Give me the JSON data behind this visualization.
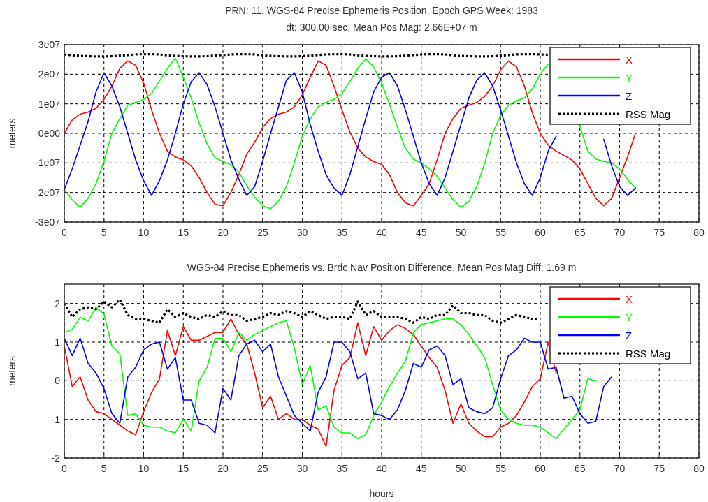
{
  "chart_data": [
    {
      "type": "line",
      "title": "PRN: 11, WGS-84 Precise Ephemeris Position, Epoch GPS Week: 1983",
      "subtitle": "dt: 300.00 sec, Mean Pos Mag: 2.66E+07 m",
      "ylabel": "meters",
      "grid": true,
      "legend": "top right",
      "xlim": [
        0,
        80
      ],
      "xticks": [
        0,
        5,
        10,
        15,
        20,
        25,
        30,
        35,
        40,
        45,
        50,
        55,
        60,
        65,
        70,
        75,
        80
      ],
      "ylim": [
        -30000000.0,
        30000000.0
      ],
      "yticks": [
        {
          "value": -30000000.0,
          "label": "-3e07"
        },
        {
          "value": -20000000.0,
          "label": "-2e07"
        },
        {
          "value": -10000000.0,
          "label": "-1e07"
        },
        {
          "value": 0,
          "label": "0e00"
        },
        {
          "value": 10000000.0,
          "label": "1e07"
        },
        {
          "value": 20000000.0,
          "label": "2e07"
        },
        {
          "value": 30000000.0,
          "label": "3e07"
        }
      ],
      "x": [
        0,
        1,
        2,
        3,
        4,
        5,
        6,
        7,
        8,
        9,
        10,
        11,
        12,
        13,
        14,
        15,
        16,
        17,
        18,
        19,
        20,
        21,
        22,
        23,
        24,
        25,
        26,
        27,
        28,
        29,
        30,
        31,
        32,
        33,
        34,
        35,
        36,
        37,
        38,
        39,
        40,
        41,
        42,
        43,
        44,
        45,
        46,
        47,
        48,
        49,
        50,
        51,
        52,
        53,
        54,
        55,
        56,
        57,
        58,
        59,
        60,
        61,
        62,
        63,
        64,
        65,
        66,
        67,
        68,
        69,
        70,
        71,
        72
      ],
      "series": [
        {
          "name": "X",
          "color": "#ff0000",
          "line_style": "solid",
          "values": [
            0,
            4500000.0,
            6500000.0,
            7200000.0,
            8500000.0,
            11500000.0,
            16000000.0,
            22000000.0,
            24500000.0,
            23000000.0,
            17000000.0,
            8000000.0,
            0,
            -6000000.0,
            -8000000.0,
            -9000000.0,
            -11000000.0,
            -15000000.0,
            -20000000.0,
            -24000000.0,
            -24500000.0,
            -20000000.0,
            -14000000.0,
            -7000000.0,
            -3000000.0,
            2000000.0,
            5000000.0,
            6500000.0,
            7200000.0,
            9000000.0,
            13000000.0,
            19000000.0,
            24500000.0,
            23000000.0,
            16000000.0,
            8000000.0,
            500000.0,
            -5000000.0,
            -8000000.0,
            -9500000.0,
            -10500000.0,
            -14000000.0,
            -20000000.0,
            -23500000.0,
            -24500000.0,
            -21000000.0,
            -17000000.0,
            -9000000.0,
            0,
            5000000.0,
            8500000.0,
            9500000.0,
            10500000.0,
            12500000.0,
            16000000.0,
            21500000.0,
            24500000.0,
            22500000.0,
            16000000.0,
            7000000.0,
            0,
            -4000000.0,
            -6000000.0,
            -7500000.0,
            -9000000.0,
            -12000000.0,
            -17000000.0,
            -22000000.0,
            -24500000.0,
            -22000000.0,
            -15000000.0,
            -8000000.0,
            0
          ]
        },
        {
          "name": "Y",
          "color": "#00ff00",
          "line_style": "solid",
          "values": [
            -19000000.0,
            -22500000.0,
            -25000000.0,
            -22000000.0,
            -17000000.0,
            -9500000.0,
            0,
            5000000.0,
            9500000.0,
            10500000.0,
            11400000.0,
            13500000.0,
            17700000.0,
            22000000.0,
            25500000.0,
            19000000.0,
            12000000.0,
            3500000.0,
            -3500000.0,
            -8300000.0,
            -9500000.0,
            -10600000.0,
            -13000000.0,
            -17700000.0,
            -21600000.0,
            -24500000.0,
            -25500000.0,
            -23000000.0,
            -18000000.0,
            -10000000.0,
            -1000000.0,
            5000000.0,
            9000000.0,
            10500000.0,
            11500000.0,
            13500000.0,
            17500000.0,
            22000000.0,
            25200000.0,
            22500000.0,
            17000000.0,
            9800000.0,
            2000000.0,
            -5000000.0,
            -8700000.0,
            -10000000.0,
            -12000000.0,
            -14500000.0,
            -18500000.0,
            -22500000.0,
            -25000000.0,
            -23000000.0,
            -18000000.0,
            -10000000.0,
            0,
            6000000.0,
            9500000.0,
            11000000.0,
            12000000.0,
            15000000.0,
            20000000.0,
            23500000.0,
            null,
            null,
            null,
            2500000.0,
            -6000000.0,
            -8700000.0,
            -9500000.0,
            -10000000.0,
            -12000000.0,
            -15500000.0,
            -18500000.0
          ]
        },
        {
          "name": "Z",
          "color": "#0000ff",
          "line_style": "solid",
          "values": [
            -19000000.0,
            -12000000.0,
            -4000000.0,
            4000000.0,
            14000000.0,
            20500000.0,
            16000000.0,
            9000000.0,
            0,
            -9000000.0,
            -16000000.0,
            -21000000.0,
            -16000000.0,
            -9000000.0,
            0,
            10000000.0,
            17500000.0,
            20500000.0,
            16500000.0,
            9000000.0,
            0,
            -9000000.0,
            -15500000.0,
            -21000000.0,
            -18000000.0,
            -9500000.0,
            0,
            9000000.0,
            18000000.0,
            20500000.0,
            14000000.0,
            3000000.0,
            -6000000.0,
            -14000000.0,
            -18500000.0,
            -21000000.0,
            -14000000.0,
            -4500000.0,
            5000000.0,
            14000000.0,
            19000000.0,
            20500000.0,
            16000000.0,
            8000000.0,
            -1000000.0,
            -10000000.0,
            -17000000.0,
            -21000000.0,
            -15000000.0,
            -6000000.0,
            3000000.0,
            12000000.0,
            18000000.0,
            20500000.0,
            16000000.0,
            8000000.0,
            -1000000.0,
            -10000000.0,
            -17000000.0,
            -21000000.0,
            -15000000.0,
            -6000000.0,
            -1000000.0,
            null,
            null,
            null,
            null,
            null,
            -2000000.0,
            -11000000.0,
            -18000000.0,
            -21000000.0,
            -18500000.0
          ]
        },
        {
          "name": "RSS Mag",
          "color": "#000000",
          "line_style": "dotted",
          "values": [
            26700000.0,
            26400000.0,
            26200000.0,
            26100000.0,
            26000000.0,
            26000000.0,
            26100000.0,
            26300000.0,
            26500000.0,
            26700000.0,
            26800000.0,
            26800000.0,
            26700000.0,
            26400000.0,
            26200000.0,
            26100000.0,
            26000000.0,
            26000000.0,
            26100000.0,
            26300000.0,
            26500000.0,
            26700000.0,
            26800000.0,
            26800000.0,
            26700000.0,
            26400000.0,
            26200000.0,
            26100000.0,
            26000000.0,
            26000000.0,
            26100000.0,
            26300000.0,
            26500000.0,
            26700000.0,
            26800000.0,
            26800000.0,
            26700000.0,
            26400000.0,
            26200000.0,
            26100000.0,
            26000000.0,
            26000000.0,
            26100000.0,
            26300000.0,
            26500000.0,
            26700000.0,
            26800000.0,
            26800000.0,
            26700000.0,
            26400000.0,
            26200000.0,
            26100000.0,
            26000000.0,
            26000000.0,
            26100000.0,
            26300000.0,
            26500000.0,
            26700000.0,
            26800000.0,
            26800000.0,
            26700000.0,
            26600000.0,
            null,
            null,
            null,
            null,
            null,
            null,
            null,
            null,
            null,
            null,
            null
          ]
        }
      ]
    },
    {
      "type": "line",
      "title": "WGS-84 Precise Ephemeris vs. Brdc Nav Position Difference, Mean Pos Mag Diff: 1.69 m",
      "xlabel": "hours",
      "ylabel": "meters",
      "grid": true,
      "legend": "top right",
      "xlim": [
        0,
        80
      ],
      "xticks": [
        0,
        5,
        10,
        15,
        20,
        25,
        30,
        35,
        40,
        45,
        50,
        55,
        60,
        65,
        70,
        75,
        80
      ],
      "ylim": [
        -2,
        2.5
      ],
      "yticks": [
        -2,
        -1,
        0,
        1,
        2
      ],
      "x": [
        0,
        1,
        2,
        3,
        4,
        5,
        6,
        7,
        8,
        9,
        10,
        11,
        12,
        13,
        14,
        15,
        16,
        17,
        18,
        19,
        20,
        21,
        22,
        23,
        24,
        25,
        26,
        27,
        28,
        29,
        30,
        31,
        32,
        33,
        34,
        35,
        36,
        37,
        38,
        39,
        40,
        41,
        42,
        43,
        44,
        45,
        46,
        47,
        48,
        49,
        50,
        51,
        52,
        53,
        54,
        55,
        56,
        57,
        58,
        59,
        60,
        61,
        62,
        63,
        64,
        65,
        66,
        67,
        68,
        69
      ],
      "series": [
        {
          "name": "X",
          "color": "#ff0000",
          "line_style": "solid",
          "values": [
            0.9,
            -0.15,
            0.1,
            -0.5,
            -0.8,
            -0.85,
            -1.0,
            -1.15,
            -1.3,
            -1.4,
            -0.8,
            -0.3,
            0.05,
            1.3,
            0.65,
            1.4,
            1.05,
            1.05,
            1.15,
            1.25,
            1.25,
            1.6,
            1.2,
            0.95,
            0.2,
            -0.7,
            -0.4,
            -1.0,
            -0.85,
            -1.0,
            -1.0,
            -1.15,
            -1.25,
            -1.7,
            -0.25,
            0.4,
            0.6,
            1.5,
            0.65,
            1.4,
            1.05,
            1.3,
            1.45,
            1.35,
            1.2,
            0.9,
            0.6,
            0.35,
            -0.25,
            -1.1,
            -0.6,
            -1.1,
            -1.3,
            -1.45,
            -1.45,
            -1.2,
            -1.1,
            -0.9,
            -0.55,
            -0.15,
            0.05,
            1.0,
            0.2,
            null,
            null,
            null,
            null,
            null,
            null,
            null
          ]
        },
        {
          "name": "Y",
          "color": "#00ff00",
          "line_style": "solid",
          "values": [
            1.25,
            1.33,
            1.64,
            1.55,
            1.9,
            1.73,
            0.9,
            0.7,
            -0.9,
            -0.85,
            -1.15,
            -1.2,
            -1.2,
            -1.3,
            -1.35,
            -1.0,
            -1.3,
            0,
            0.35,
            1.1,
            1.1,
            0.75,
            1.25,
            1.05,
            1.2,
            1.3,
            1.4,
            1.5,
            1.55,
            0.85,
            -0.1,
            0.4,
            -0.75,
            -0.65,
            -1.2,
            -1.35,
            -1.35,
            -1.5,
            -1.4,
            -0.9,
            -0.55,
            -0.15,
            0.2,
            0.5,
            1.25,
            1.45,
            1.5,
            1.55,
            1.6,
            1.6,
            1.45,
            1.2,
            0.9,
            0.6,
            -0.1,
            -0.75,
            -1.0,
            -1.1,
            -1.15,
            -1.15,
            -1.2,
            -1.35,
            -1.5,
            -1.25,
            -1.0,
            -0.75,
            0.05,
            0,
            null,
            null
          ]
        },
        {
          "name": "Z",
          "color": "#0000ff",
          "line_style": "solid",
          "values": [
            1.1,
            0.65,
            1.1,
            0.45,
            0.2,
            -0.2,
            -0.85,
            -1.1,
            0.1,
            0.35,
            0.8,
            0.95,
            1.0,
            0.3,
            0.6,
            -0.5,
            -0.5,
            -1.1,
            -1.15,
            -1.35,
            -0.2,
            -0.5,
            0.65,
            0.95,
            1.05,
            0.75,
            0.95,
            0.1,
            -0.4,
            -0.9,
            -1.1,
            -1.3,
            -0.3,
            0.1,
            1.0,
            1.0,
            0.75,
            0.05,
            0.2,
            -0.85,
            -0.9,
            -1.0,
            -0.75,
            -0.25,
            0.45,
            0.35,
            0.8,
            0.9,
            0.65,
            -0.1,
            0.05,
            -0.7,
            -0.8,
            -0.85,
            -0.7,
            0.05,
            0.65,
            0.8,
            1.1,
            1.0,
            1.0,
            0.3,
            0.35,
            -0.45,
            -0.4,
            -0.85,
            -1.1,
            -1.05,
            -0.15,
            0.1
          ]
        },
        {
          "name": "RSS Mag",
          "color": "#000000",
          "line_style": "dotted",
          "values": [
            2.0,
            1.65,
            1.85,
            1.9,
            1.85,
            2.05,
            1.9,
            2.1,
            1.7,
            1.6,
            1.6,
            1.55,
            1.5,
            1.85,
            1.65,
            1.75,
            1.65,
            1.6,
            1.7,
            1.65,
            1.8,
            1.7,
            1.7,
            1.55,
            1.6,
            1.65,
            1.75,
            1.7,
            1.8,
            1.75,
            1.65,
            1.8,
            1.7,
            1.6,
            1.65,
            1.65,
            1.6,
            2.05,
            1.7,
            1.8,
            1.65,
            1.65,
            1.65,
            1.6,
            1.5,
            1.65,
            1.6,
            1.7,
            1.7,
            1.95,
            1.75,
            1.75,
            1.7,
            1.7,
            1.55,
            1.5,
            1.6,
            1.7,
            1.65,
            1.6,
            1.6,
            null,
            null,
            null,
            null,
            null,
            null,
            null,
            null,
            null
          ]
        }
      ]
    }
  ]
}
